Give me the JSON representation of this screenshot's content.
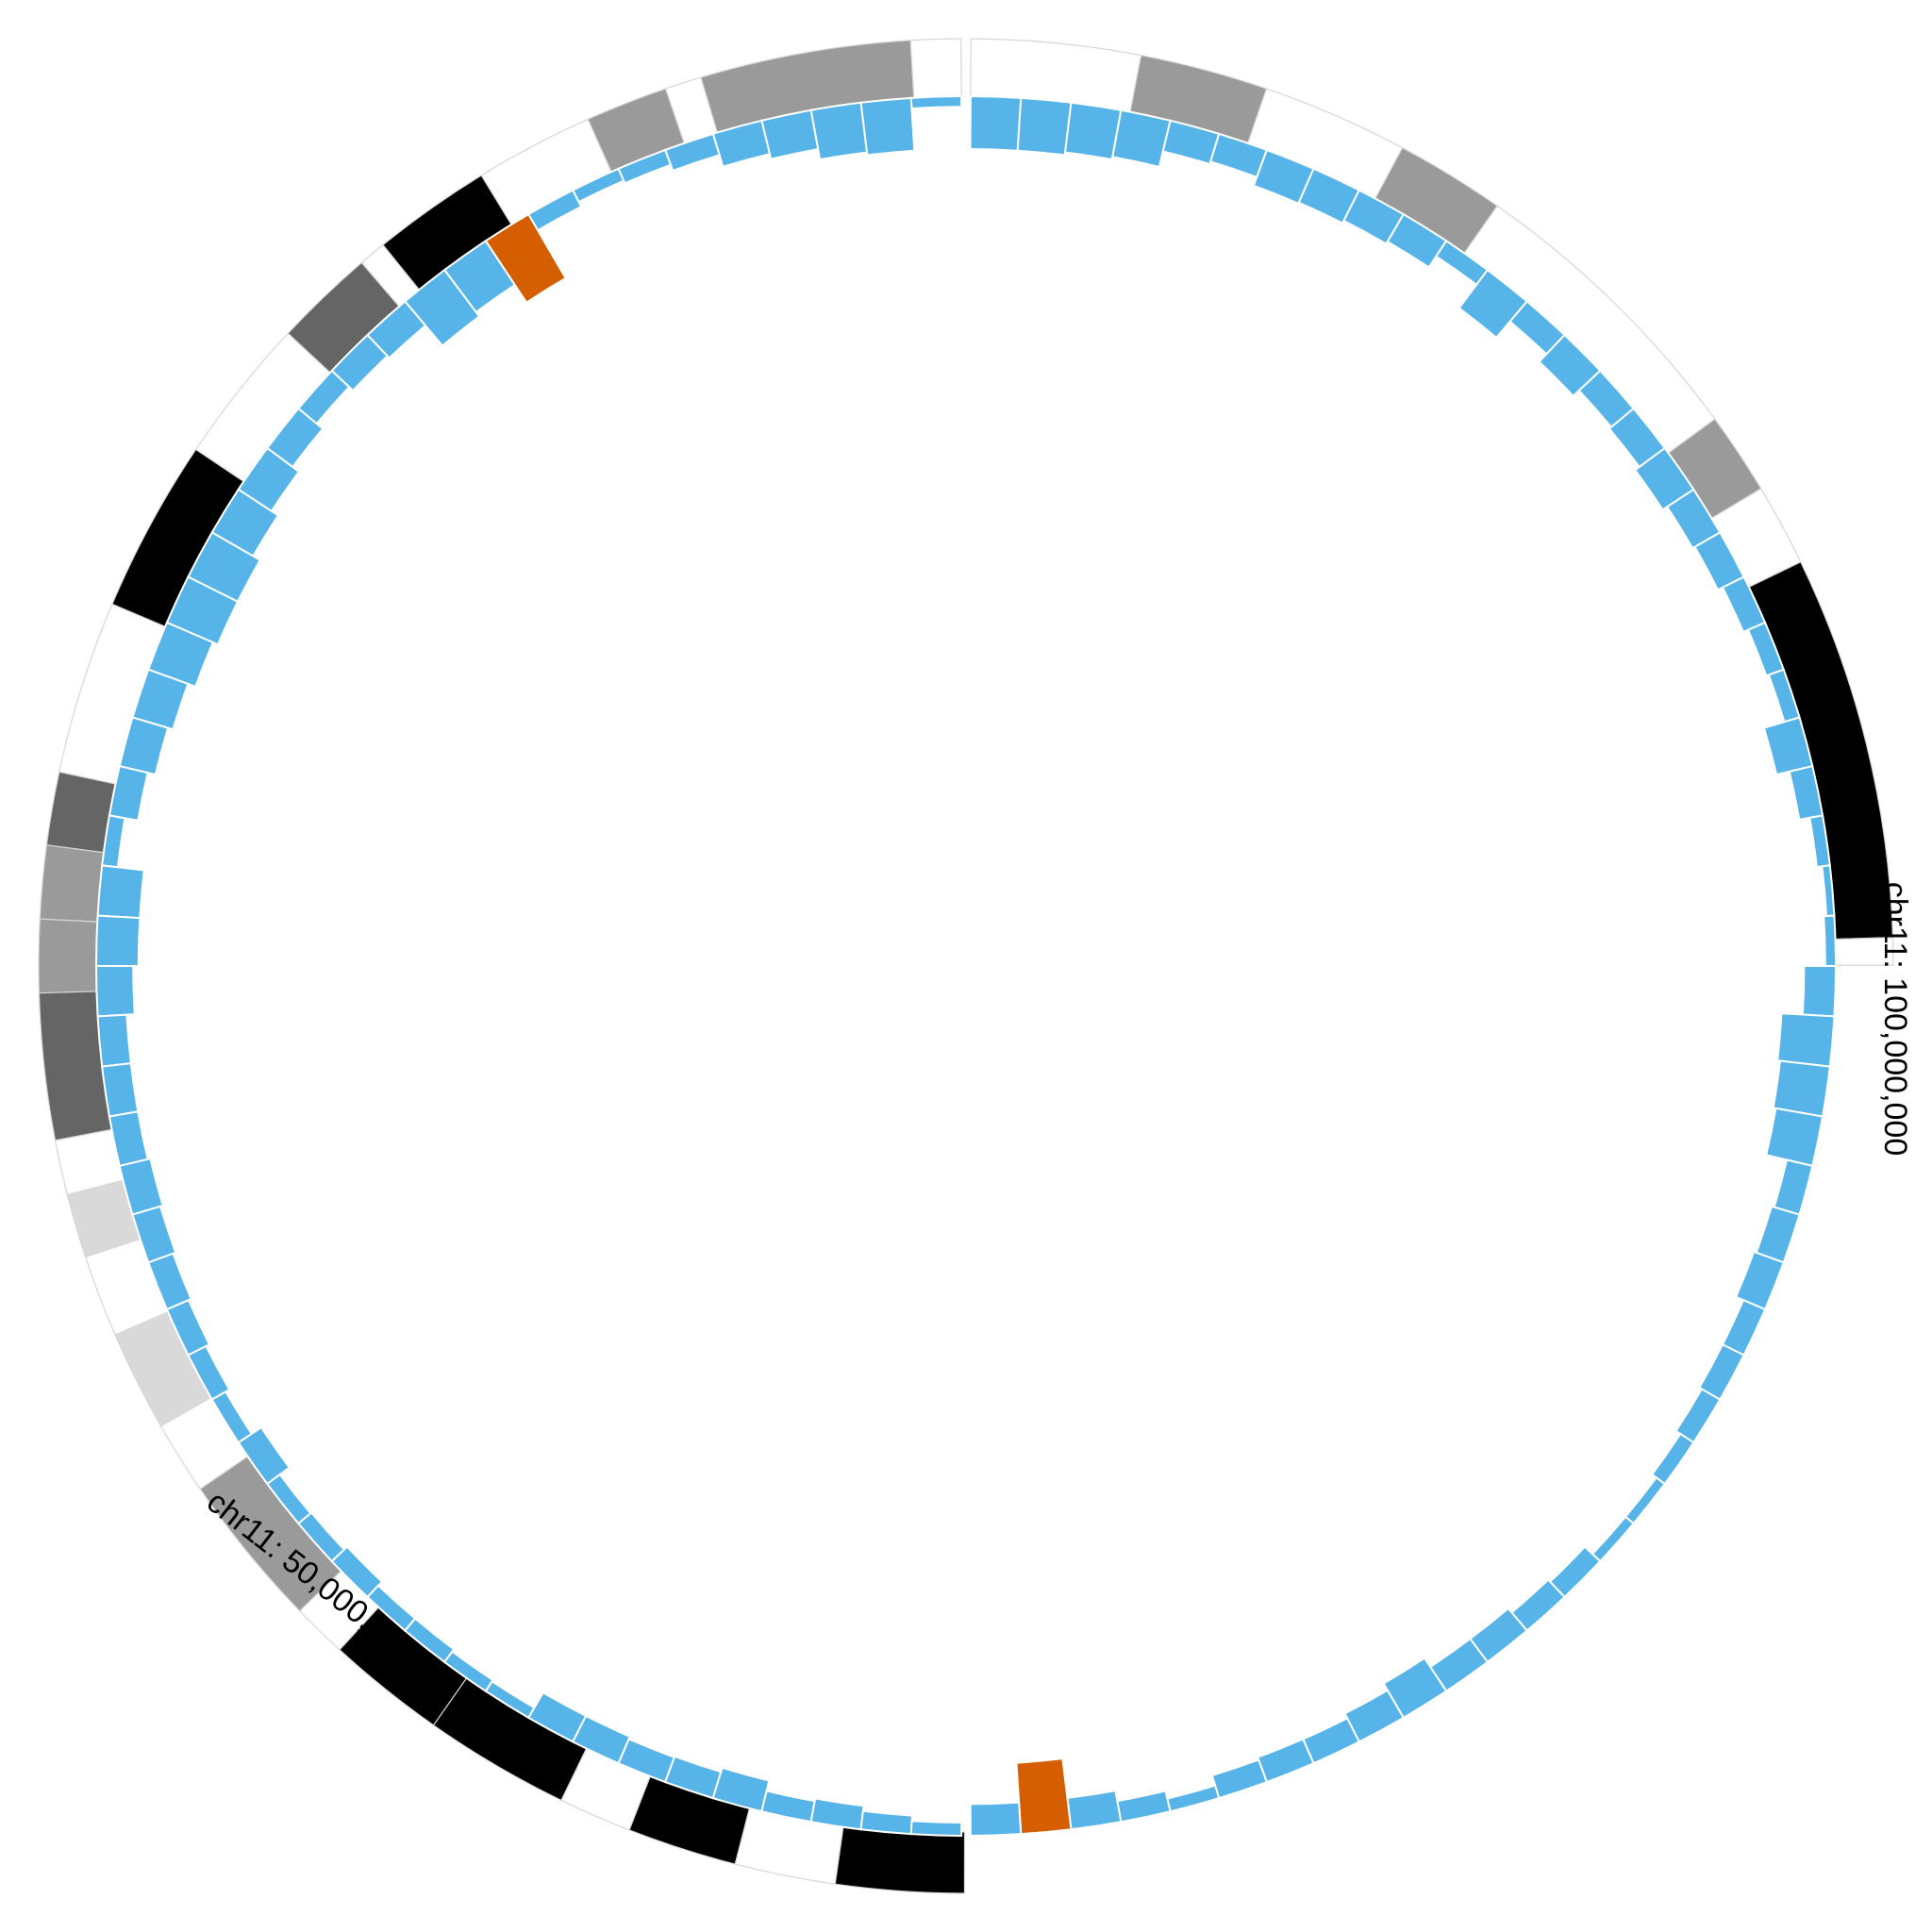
{
  "chart_data": {
    "type": "bar",
    "layout": "circular",
    "chromosome": "chr11",
    "bins_per_side": 54,
    "position_labels": [
      {
        "text": "chr11: 50,000,000",
        "position": 50000000
      },
      {
        "text": "chr11: 100,000,000",
        "position": 100000000
      }
    ],
    "ideogram": {
      "band_colors": {
        "gneg": "#ffffff",
        "gpos25": "#d9d9d9",
        "gpos50": "#9a9a9a",
        "gpos75": "#656565",
        "gpos100": "#000000"
      },
      "left_bands": [
        {
          "stain": "gneg",
          "start": 0.0,
          "end": 0.06
        },
        {
          "stain": "gpos50",
          "start": 0.06,
          "end": 0.29
        },
        {
          "stain": "gneg",
          "start": 0.29,
          "end": 0.33
        },
        {
          "stain": "gpos50",
          "start": 0.33,
          "end": 0.42
        },
        {
          "stain": "gneg",
          "start": 0.42,
          "end": 0.55
        },
        {
          "stain": "gpos100",
          "start": 0.55,
          "end": 0.68
        },
        {
          "stain": "gneg",
          "start": 0.68,
          "end": 0.71
        },
        {
          "stain": "gpos75",
          "start": 0.71,
          "end": 0.82
        },
        {
          "stain": "gneg",
          "start": 0.82,
          "end": 0.98
        },
        {
          "stain": "gpos100",
          "start": 0.98,
          "end": 1.17
        },
        {
          "stain": "gneg",
          "start": 1.17,
          "end": 1.36
        },
        {
          "stain": "gpos75",
          "start": 1.36,
          "end": 1.44
        },
        {
          "stain": "gpos50",
          "start": 1.44,
          "end": 1.52
        },
        {
          "stain": "gpos50",
          "start": 1.52,
          "end": 1.6
        },
        {
          "stain": "gpos75",
          "start": 1.6,
          "end": 1.76
        },
        {
          "stain": "gneg",
          "start": 1.76,
          "end": 1.82
        },
        {
          "stain": "gpos25",
          "start": 1.82,
          "end": 1.89
        },
        {
          "stain": "gneg",
          "start": 1.89,
          "end": 1.98
        },
        {
          "stain": "gpos25",
          "start": 1.98,
          "end": 2.09
        },
        {
          "stain": "gneg",
          "start": 2.09,
          "end": 2.17
        },
        {
          "stain": "gpos50",
          "start": 2.17,
          "end": 2.34
        },
        {
          "stain": "gneg",
          "start": 2.34,
          "end": 2.4
        },
        {
          "stain": "gpos100",
          "start": 2.4,
          "end": 2.53
        },
        {
          "stain": "gpos100",
          "start": 2.53,
          "end": 2.69
        },
        {
          "stain": "gneg",
          "start": 2.69,
          "end": 2.77
        },
        {
          "stain": "gpos100",
          "start": 2.77,
          "end": 2.89
        },
        {
          "stain": "gneg",
          "start": 2.89,
          "end": 3.0
        },
        {
          "stain": "gpos100",
          "start": 3.0,
          "end": 3.14
        }
      ],
      "right_bands": [
        {
          "stain": "gneg",
          "start": 0.0,
          "end": 0.19
        },
        {
          "stain": "gpos50",
          "start": 0.19,
          "end": 0.33
        },
        {
          "stain": "gneg",
          "start": 0.33,
          "end": 0.49
        },
        {
          "stain": "gpos50",
          "start": 0.49,
          "end": 0.61
        },
        {
          "stain": "gneg",
          "start": 0.61,
          "end": 0.94
        },
        {
          "stain": "gpos50",
          "start": 0.94,
          "end": 1.03
        },
        {
          "stain": "gneg",
          "start": 1.03,
          "end": 1.12
        },
        {
          "stain": "gpos100",
          "start": 1.12,
          "end": 1.54
        },
        {
          "stain": "gneg",
          "start": 1.54,
          "end": 1.57
        }
      ]
    },
    "series": [
      {
        "values": [
          0.2,
          1.0,
          0.95,
          0.75,
          0.65,
          0.42,
          0.3,
          0.25,
          0.35,
          0.6,
          1.0,
          1.1,
          0.6,
          0.55,
          0.45,
          0.6,
          0.75,
          0.9,
          1.05,
          1.05,
          0.95,
          0.8,
          0.7,
          0.55,
          0.3,
          0.8,
          0.8,
          0.7,
          0.55,
          0.55,
          0.55,
          0.6,
          0.55,
          0.5,
          0.45,
          0.38,
          0.3,
          0.52,
          0.3,
          0.32,
          0.4,
          0.3,
          0.3,
          0.25,
          0.22,
          0.55,
          0.55,
          0.5,
          0.52,
          0.6,
          0.4,
          0.45,
          0.35,
          0.25
        ]
      },
      {
        "values": [
          1.0,
          1.0,
          0.95,
          0.9,
          0.6,
          0.55,
          0.72,
          0.7,
          0.65,
          0.6,
          0.35,
          0.9,
          0.5,
          0.7,
          0.55,
          0.6,
          0.7,
          0.6,
          0.55,
          0.45,
          0.35,
          0.3,
          0.7,
          0.45,
          0.25,
          0.15,
          0.2,
          0.6,
          1.0,
          0.95,
          0.9,
          0.5,
          0.55,
          0.6,
          0.45,
          0.45,
          0.4,
          0.3,
          0.2,
          0.2,
          0.4,
          0.45,
          0.55,
          0.55,
          0.75,
          0.6,
          0.5,
          0.5,
          0.45,
          0.25,
          0.4,
          0.6,
          0.55,
          0.6
        ]
      }
    ],
    "highlights": [
      {
        "values": [
          1.35
        ],
        "color": "#d55e00"
      },
      {
        "values": [
          1.4
        ],
        "color": "#d55e00"
      }
    ],
    "bar_color": "#56b4e9",
    "highlight_color": "#d55e00"
  }
}
